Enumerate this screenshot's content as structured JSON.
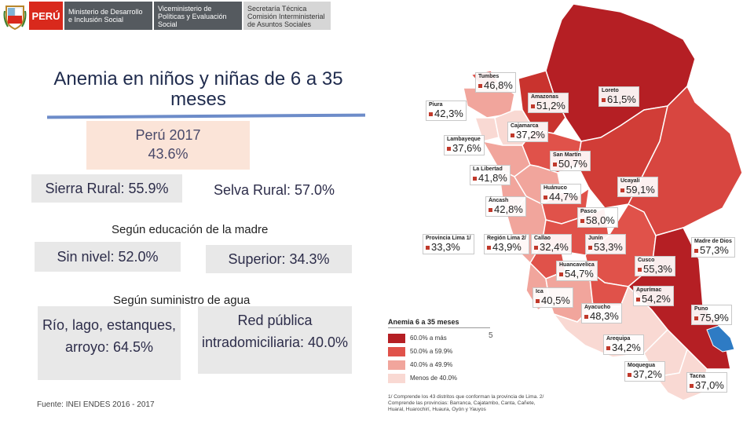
{
  "header": {
    "peru": "PERÚ",
    "ministry": "Ministerio de Desarrollo e Inclusión Social",
    "vice": "Viceministerio de Políticas y Evaluación Social",
    "secretaria": "Secretaría Técnica Comisión Interministerial de Asuntos Sociales"
  },
  "title": "Anemia en niños y niñas de 6 a 35 meses",
  "peru_box": {
    "label": "Perú 2017",
    "value": "43.6%"
  },
  "sierra": "Sierra Rural: 55.9%",
  "selva": "Selva Rural: 57.0%",
  "section_education": "Según educación de la madre",
  "sin_nivel": "Sin nivel: 52.0%",
  "superior": "Superior: 34.3%",
  "section_water": "Según suministro de agua",
  "rio": "Río, lago, estanques, arroyo: 64.5%",
  "red_publica": "Red pública intradomiciliaria: 40.0%",
  "fuente": "Fuente: INEI ENDES 2016 - 2017",
  "page_number": "5",
  "legend": {
    "title": "Anemia 6 a 35 meses",
    "items": [
      {
        "label": "60.0% a más",
        "color": "#b51f24"
      },
      {
        "label": "50.0% a 59.9%",
        "color": "#e0524a"
      },
      {
        "label": "40.0% a 49.9%",
        "color": "#f1a59c"
      },
      {
        "label": "Menos de 40.0%",
        "color": "#f9d9d3"
      }
    ]
  },
  "footnote": "1/ Comprende los 43 distritos que conforman la provincia de Lima. 2/ Comprende las provincias: Barranca, Cajatambo, Canta, Cañete, Huaral, Huarochirí, Huaura, Oyón y Yauyos",
  "regions": {
    "tumbes": {
      "name": "Tumbes",
      "value": "46,8%"
    },
    "loreto": {
      "name": "Loreto",
      "value": "61,5%"
    },
    "amazonas": {
      "name": "Amazonas",
      "value": "51,2%"
    },
    "piura": {
      "name": "Piura",
      "value": "42,3%"
    },
    "cajamarca": {
      "name": "Cajamarca",
      "value": "37,2%"
    },
    "lambayeque": {
      "name": "Lambayeque",
      "value": "37,6%"
    },
    "san_martin": {
      "name": "San Martín",
      "value": "50,7%"
    },
    "la_libertad": {
      "name": "La Libertad",
      "value": "41,8%"
    },
    "ucayali": {
      "name": "Ucayali",
      "value": "59,1%"
    },
    "huanuco": {
      "name": "Huánuco",
      "value": "44,7%"
    },
    "ancash": {
      "name": "Áncash",
      "value": "42,8%"
    },
    "pasco": {
      "name": "Pasco",
      "value": "58,0%"
    },
    "lima1": {
      "name": "Provincia Lima 1/",
      "value": "33,3%"
    },
    "lima2": {
      "name": "Región Lima 2/",
      "value": "43,9%"
    },
    "callao": {
      "name": "Callao",
      "value": "32,4%"
    },
    "junin": {
      "name": "Junín",
      "value": "53,3%"
    },
    "madre_dios": {
      "name": "Madre de Dios",
      "value": "57,3%"
    },
    "huancavelica": {
      "name": "Huancavelica",
      "value": "54,7%"
    },
    "cusco": {
      "name": "Cusco",
      "value": "55,3%"
    },
    "ica": {
      "name": "Ica",
      "value": "40,5%"
    },
    "apurimac": {
      "name": "Apurímac",
      "value": "54,2%"
    },
    "ayacucho": {
      "name": "Ayacucho",
      "value": "48,3%"
    },
    "puno": {
      "name": "Puno",
      "value": "75,9%"
    },
    "arequipa": {
      "name": "Arequipa",
      "value": "34,2%"
    },
    "moquegua": {
      "name": "Moquegua",
      "value": "37,2%"
    },
    "tacna": {
      "name": "Tacna",
      "value": "37,0%"
    }
  }
}
